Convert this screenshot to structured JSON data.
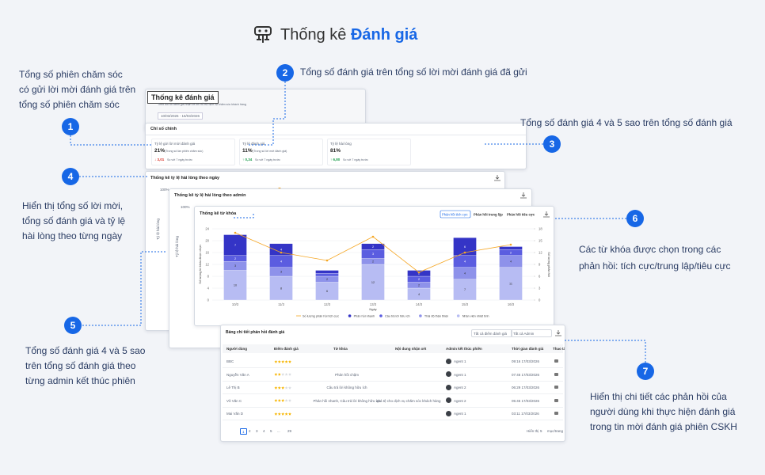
{
  "header": {
    "title": "Thống kê",
    "title_highlight": "Đánh giá"
  },
  "callouts": [
    {
      "number": 1,
      "lines": [
        "Tổng số phiên chăm sóc",
        "có gửi lời mời đánh giá trên",
        "tổng số phiên chăm sóc"
      ]
    },
    {
      "number": 2,
      "lines": [
        "Tổng số đánh giá trên tổng số lời mời đánh giá đã gửi"
      ]
    },
    {
      "number": 3,
      "lines": [
        "Tổng số đánh giá 4 và 5 sao trên tổng số đánh giá"
      ]
    },
    {
      "number": 4,
      "lines": [
        "Hiển thị tổng số lời mời,",
        "tổng số đánh giá và tỷ lệ",
        "hài lòng theo từng ngày"
      ]
    },
    {
      "number": 5,
      "lines": [
        "Tổng số đánh giá 4 và 5 sao",
        "trên tổng số đánh giá theo",
        "từng admin kết thúc phiên"
      ]
    },
    {
      "number": 6,
      "lines": [
        "Các từ khóa được chọn trong các",
        "phản hồi: tích cực/trung lập/tiêu cực"
      ]
    },
    {
      "number": 7,
      "lines": [
        "Hiển thị chi tiết các phản hồi của",
        "người dùng khi thực hiện đánh giá",
        "trong tin mời đánh giá phiên CSKH"
      ]
    }
  ],
  "overview": {
    "title": "Thống kê đánh giá",
    "subtitle": "Theo dõi số đánh giá nhận về khi hỗ trợ dịch vụ chăm sóc khách hàng",
    "date_range": "10/03/2026 - 16/03/2026"
  },
  "key_metrics": {
    "title": "Chỉ số chính",
    "metrics": [
      {
        "label": "Tỷ lệ gửi lời mời đánh giá",
        "value": "21%",
        "note": "(Trong số lần phiên chăm sóc)",
        "change": "↓ 3,01",
        "compare": "So với 7 ngày trước"
      },
      {
        "label": "Tỷ lệ đánh giá",
        "value": "11%",
        "note": "(Trong số lời mời đánh giá)",
        "change": "↑ 0,34",
        "compare": "So với 7 ngày trước"
      },
      {
        "label": "Tỷ lệ hài lòng",
        "value": "81%",
        "change": "↑ 6,80",
        "compare": "So với 7 ngày trước"
      }
    ]
  },
  "daily_chart": {
    "title": "Thống kê tỷ lệ hài lòng theo ngày",
    "top_tick": "100%",
    "ylabel": "Tỷ lệ hài lòng"
  },
  "admin_chart": {
    "title": "Thống kê tỷ lệ hài lòng theo admin",
    "top_tick": "100%",
    "ylabel": "Tỷ lệ hài lòng"
  },
  "keyword_tabs": [
    "Phản hồi tích cực",
    "Phản hồi trung lập",
    "Phản hồi tiêu cực"
  ],
  "chart_data": {
    "type": "bar",
    "stacked": true,
    "title": "Thống kê từ khóa",
    "xlabel": "Ngày",
    "ylabel": "Số lượng từ khóa được chọn",
    "y2label": "Số lượng phản hồi",
    "categories": [
      "10/3",
      "11/3",
      "12/3",
      "13/3",
      "14/3",
      "15/3",
      "16/3"
    ],
    "series": [
      {
        "name": "Số lượng phản hồi tích cực",
        "type": "line",
        "axis": "y2",
        "color": "#f5a623",
        "values": [
          17,
          12,
          10,
          16,
          7,
          12,
          14
        ]
      },
      {
        "name": "Phản hồi nhanh",
        "color": "#3434c6",
        "values": [
          7,
          4,
          1,
          2,
          2,
          6,
          1
        ]
      },
      {
        "name": "Câu trả lời hữu ích",
        "color": "#5b5de0",
        "values": [
          2,
          4,
          1,
          3,
          2,
          4,
          2
        ]
      },
      {
        "name": "Thái độ thân thiện",
        "color": "#8e92ea",
        "values": [
          3,
          3,
          2,
          2,
          2,
          4,
          4
        ]
      },
      {
        "name": "Nhân viên nhiệt tình",
        "color": "#b7bcf3",
        "values": [
          10,
          8,
          6,
          12,
          4,
          7,
          11
        ]
      }
    ],
    "ylim": [
      0,
      24
    ],
    "yticks": [
      0,
      4,
      8,
      12,
      16,
      20,
      24
    ],
    "y2lim": [
      0,
      18
    ],
    "y2ticks": [
      0,
      3,
      6,
      9,
      12,
      15,
      18
    ],
    "grid": true,
    "legend": "bottom"
  },
  "table": {
    "title": "Bảng chi tiết phản hồi đánh giá",
    "filters": [
      "Tất cả điểm đánh giá",
      "Tất cả Admin"
    ],
    "columns": [
      "Người dùng",
      "Điểm đánh giá",
      "Từ khóa",
      "Nội dung nhận xét",
      "Admin kết thúc phiên",
      "Thời gian đánh giá",
      "Thao tác"
    ],
    "rows": [
      {
        "user": "BBC",
        "rating": 5,
        "keywords": null,
        "comment": null,
        "admin": "Agent 1",
        "time": "09:16 17/03/2026"
      },
      {
        "user": "Nguyễn Văn A",
        "rating": 2,
        "keywords": "Phản hồi chậm",
        "comment": null,
        "admin": "Agent 1",
        "time": "07:46 17/03/2026"
      },
      {
        "user": "Lê Thị B",
        "rating": 3,
        "keywords": "Câu trả lời không hữu ích",
        "comment": null,
        "admin": "Agent 2",
        "time": "06:29 17/03/2026"
      },
      {
        "user": "Võ Văn C",
        "rating": 3,
        "keywords": "Phản hồi nhanh, Câu trả lời không hữu ích",
        "comment": "quá tệ cho dịch vụ chăm sóc khách hàng",
        "admin": "Agent 2",
        "time": "05:45 17/03/2026"
      },
      {
        "user": "Mai Văn D",
        "rating": 5,
        "keywords": null,
        "comment": null,
        "admin": "Agent 1",
        "time": "03:11 17/03/2026"
      }
    ],
    "pagination": {
      "pages": [
        1,
        2,
        3,
        4,
        5,
        "...",
        29
      ],
      "show_label": "Hiển thị",
      "page_size": 5,
      "unit": "mục/trang"
    }
  }
}
